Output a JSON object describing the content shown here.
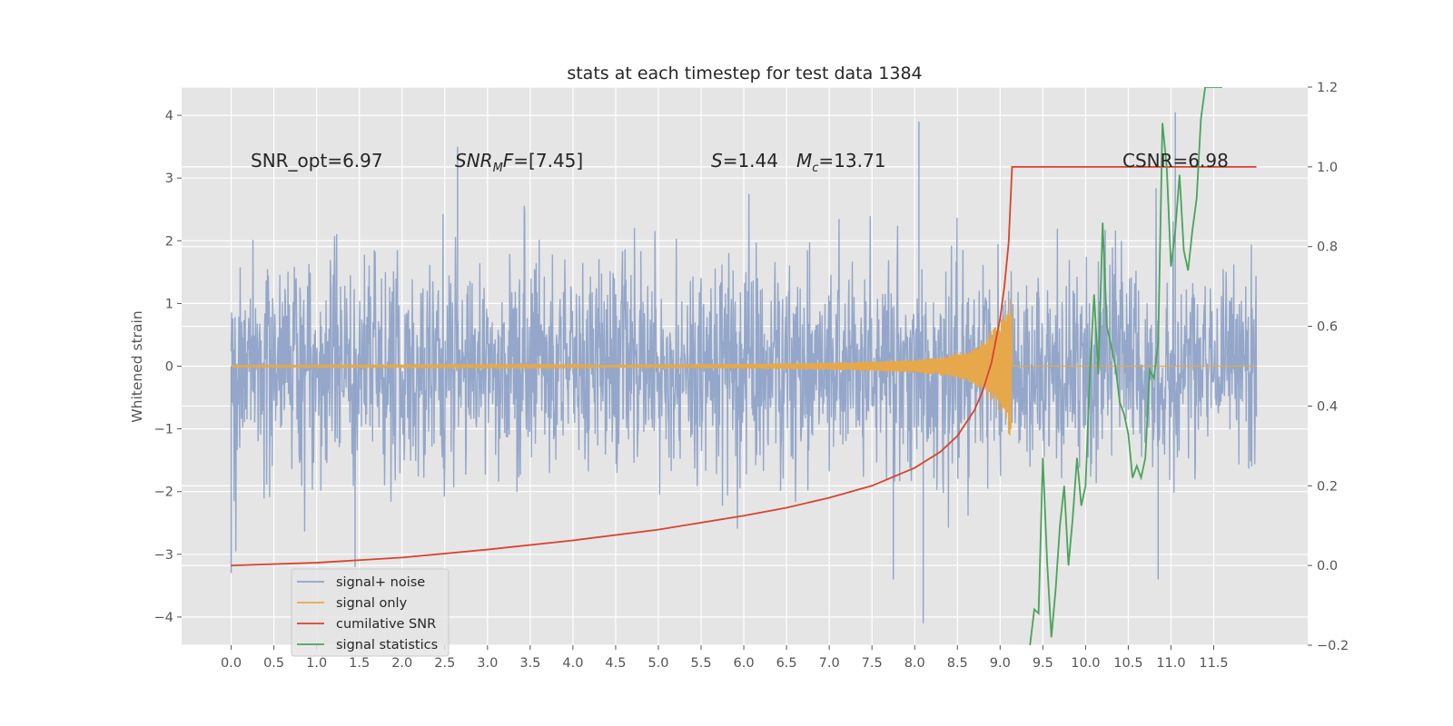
{
  "chart_data": {
    "type": "line",
    "title": "stats at each timestep for test data 1384",
    "ylabel": "Whitened strain",
    "xlabel": "",
    "xlim": [
      -0.58,
      12.6
    ],
    "ylim": [
      -4.45,
      4.45
    ],
    "ylim_right": [
      -0.2,
      1.2
    ],
    "grid": true,
    "legend_position": "lower-left",
    "x_ticks": [
      "0.0",
      "0.5",
      "1.0",
      "1.5",
      "2.0",
      "2.5",
      "3.0",
      "3.5",
      "4.0",
      "4.5",
      "5.0",
      "5.5",
      "6.0",
      "6.5",
      "7.0",
      "7.5",
      "8.0",
      "8.5",
      "9.0",
      "9.5",
      "10.0",
      "10.5",
      "11.0",
      "11.5"
    ],
    "y_ticks": [
      "4",
      "3",
      "2",
      "1",
      "0",
      "−1",
      "−2",
      "−3",
      "−4"
    ],
    "y_ticks_right": [
      "1.2",
      "1.0",
      "0.8",
      "0.6",
      "0.4",
      "0.2",
      "0.0",
      "−0.2"
    ],
    "annotations": {
      "snr_opt": "SNR_opt=6.97",
      "snr_mf": "=[7.45]",
      "s": "=1.44",
      "mc": "=13.71",
      "csnr": "CSNR=6.98"
    },
    "series": [
      {
        "name": "signal+ noise",
        "color": "#8fa3c8",
        "axis": "left",
        "description_x_range": [
          0.0,
          12.0
        ],
        "typical_range": [
          -2.0,
          2.6
        ],
        "peaks": [
          [
            0.0,
            -3.3
          ],
          [
            1.45,
            -3.2
          ],
          [
            2.65,
            3.5
          ],
          [
            7.75,
            -3.4
          ],
          [
            8.05,
            3.9
          ],
          [
            8.1,
            -4.1
          ],
          [
            10.85,
            -3.4
          ],
          [
            11.05,
            4.05
          ]
        ]
      },
      {
        "name": "signal only",
        "color": "#e6a84a",
        "axis": "left",
        "x": [
          0.0,
          4.0,
          6.0,
          7.0,
          7.5,
          8.0,
          8.3,
          8.6,
          8.8,
          9.0,
          9.1,
          9.13,
          9.14,
          12.0
        ],
        "envelope": [
          0.01,
          0.02,
          0.04,
          0.06,
          0.08,
          0.11,
          0.15,
          0.25,
          0.4,
          0.75,
          1.1,
          1.35,
          0.0,
          0.0
        ]
      },
      {
        "name": "cumilative SNR",
        "color": "#d9432e",
        "axis": "right",
        "x": [
          0.0,
          1.0,
          2.0,
          3.0,
          4.0,
          5.0,
          6.0,
          6.5,
          7.0,
          7.5,
          8.0,
          8.3,
          8.5,
          8.7,
          8.8,
          8.9,
          9.0,
          9.05,
          9.1,
          9.14,
          12.0
        ],
        "values": [
          0.0,
          0.007,
          0.02,
          0.04,
          0.063,
          0.09,
          0.125,
          0.145,
          0.17,
          0.2,
          0.245,
          0.285,
          0.325,
          0.39,
          0.44,
          0.51,
          0.62,
          0.7,
          0.81,
          1.0,
          1.0
        ]
      },
      {
        "name": "signal statistics",
        "color": "#4aa35a",
        "axis": "right",
        "x": [
          9.35,
          9.4,
          9.45,
          9.5,
          9.55,
          9.6,
          9.65,
          9.7,
          9.75,
          9.8,
          9.85,
          9.9,
          9.95,
          10.0,
          10.05,
          10.1,
          10.15,
          10.2,
          10.25,
          10.3,
          10.35,
          10.4,
          10.45,
          10.5,
          10.55,
          10.6,
          10.65,
          10.7,
          10.75,
          10.8,
          10.85,
          10.9,
          10.95,
          11.0,
          11.05,
          11.1,
          11.15,
          11.2,
          11.25,
          11.3,
          11.35,
          11.4,
          11.45,
          11.5,
          11.55,
          11.6
        ],
        "values": [
          -0.2,
          -0.11,
          -0.12,
          0.27,
          0.01,
          -0.18,
          -0.06,
          0.1,
          0.2,
          0.0,
          0.12,
          0.27,
          0.15,
          0.2,
          0.48,
          0.68,
          0.48,
          0.86,
          0.6,
          0.55,
          0.5,
          0.41,
          0.38,
          0.33,
          0.22,
          0.25,
          0.22,
          0.27,
          0.49,
          0.47,
          0.56,
          1.11,
          1.0,
          0.75,
          0.84,
          0.98,
          0.79,
          0.74,
          0.84,
          0.92,
          1.12,
          1.2,
          1.2,
          1.2,
          1.2,
          1.2
        ]
      }
    ]
  }
}
